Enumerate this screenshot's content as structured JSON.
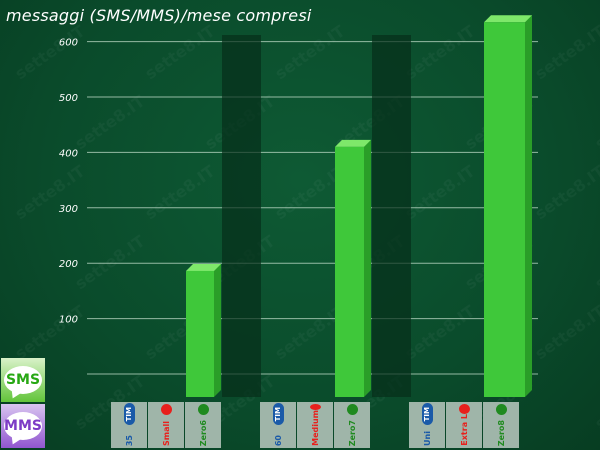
{
  "chart_data": {
    "type": "bar",
    "title": "messaggi (SMS/MMS)/mese compresi",
    "xlabel": "",
    "ylabel": "",
    "ylim": [
      0,
      600
    ],
    "yticks": [
      100,
      200,
      300,
      400,
      500,
      600
    ],
    "grid": true,
    "categories": [
      "Zero6",
      "Zero7",
      "Zero8"
    ],
    "values": [
      186,
      410,
      635
    ],
    "bar_color": "#3fc83a",
    "groups": [
      {
        "tiles": [
          {
            "brand": "TIM",
            "label": "35"
          },
          {
            "brand": "Vodafone",
            "label": "Small"
          },
          {
            "brand": "3",
            "label": "Zero6"
          }
        ]
      },
      {
        "tiles": [
          {
            "brand": "TIM",
            "label": "60"
          },
          {
            "brand": "Vodafone",
            "label": "Medium"
          },
          {
            "brand": "3",
            "label": "Zero7"
          }
        ]
      },
      {
        "tiles": [
          {
            "brand": "TIM",
            "label": "Uni"
          },
          {
            "brand": "Vodafone",
            "label": "Extra L"
          },
          {
            "brand": "3",
            "label": "Zero8"
          }
        ]
      }
    ]
  },
  "legend": {
    "sms": "SMS",
    "mms": "MMS"
  },
  "watermark": "sette8.IT",
  "colors": {
    "background": "#0a4b2b",
    "tim": "#1a5aa8",
    "vodafone": "#e8201c",
    "three": "#1f8a1f"
  }
}
